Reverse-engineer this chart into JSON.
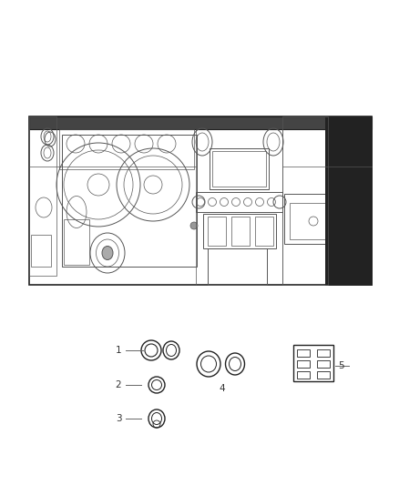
{
  "bg_color": "#ffffff",
  "outline_color": "#555555",
  "dark_color": "#222222",
  "mid_color": "#888888",
  "text_color": "#333333",
  "lw_main": 0.7,
  "lw_thick": 1.1,
  "lw_thin": 0.5,
  "fig_w": 4.38,
  "fig_h": 5.33,
  "dpi": 100
}
